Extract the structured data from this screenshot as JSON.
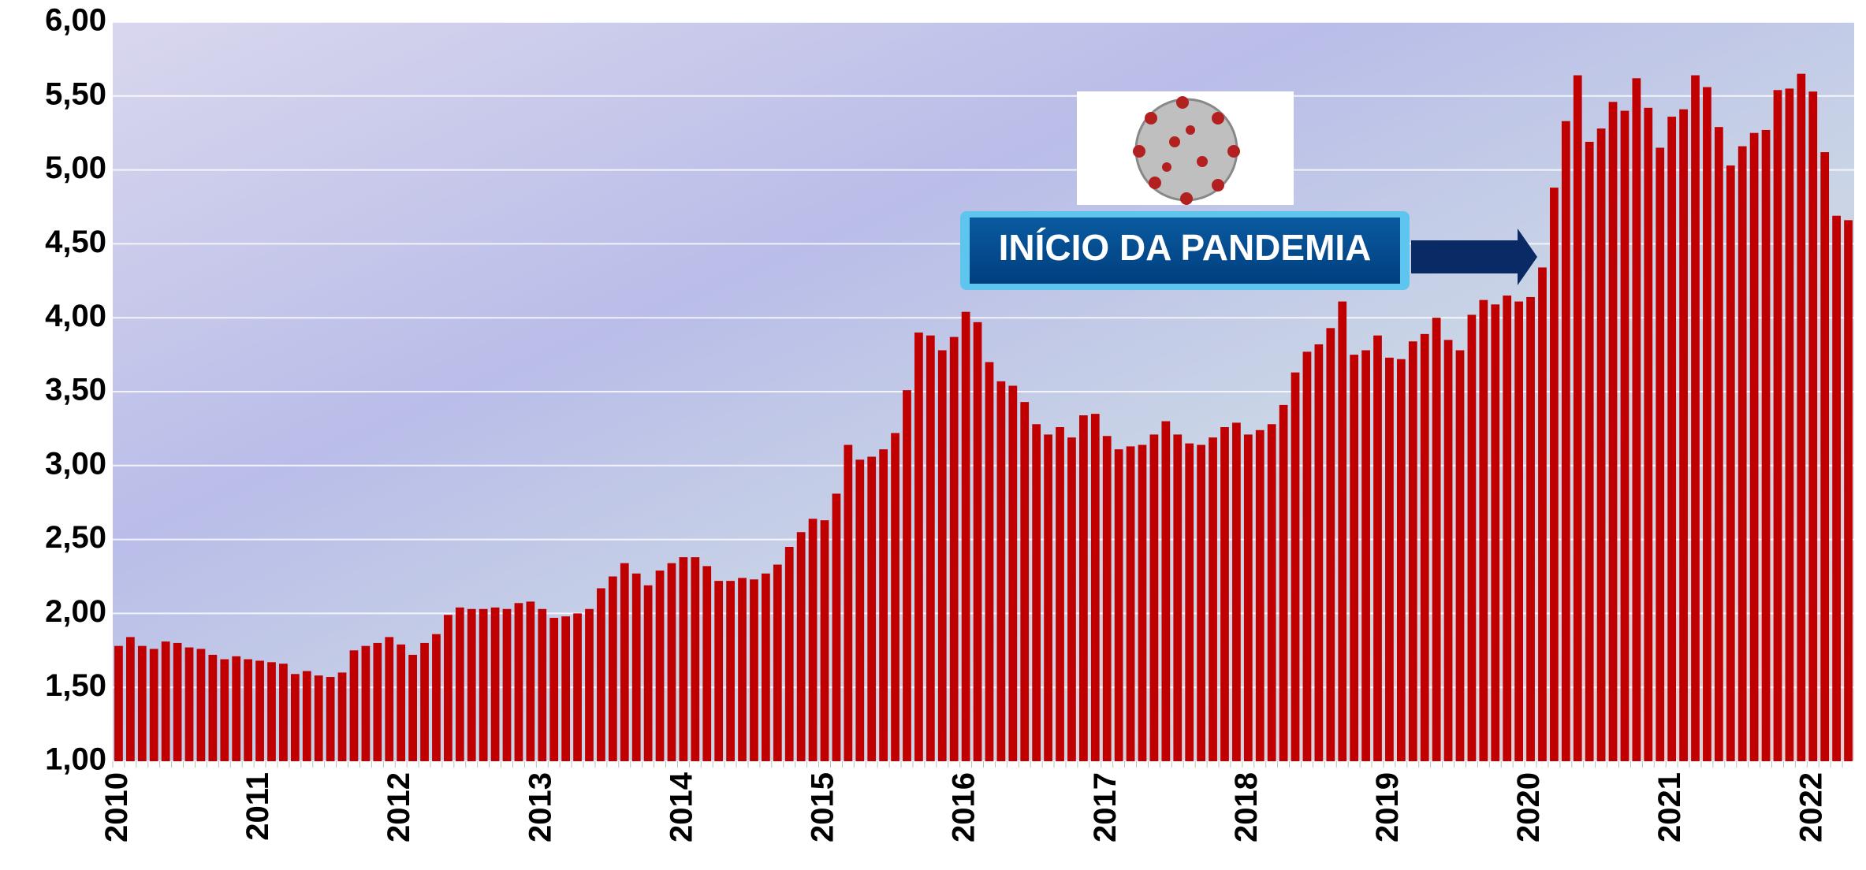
{
  "chart_data": {
    "type": "bar",
    "annotation": "INÍCIO DA PANDEMIA",
    "categories": [
      "2010",
      null,
      null,
      null,
      null,
      null,
      null,
      null,
      null,
      null,
      null,
      null,
      "2011",
      null,
      null,
      null,
      null,
      null,
      null,
      null,
      null,
      null,
      null,
      null,
      "2012",
      null,
      null,
      null,
      null,
      null,
      null,
      null,
      null,
      null,
      null,
      null,
      "2013",
      null,
      null,
      null,
      null,
      null,
      null,
      null,
      null,
      null,
      null,
      null,
      "2014",
      null,
      null,
      null,
      null,
      null,
      null,
      null,
      null,
      null,
      null,
      null,
      "2015",
      null,
      null,
      null,
      null,
      null,
      null,
      null,
      null,
      null,
      null,
      null,
      "2016",
      null,
      null,
      null,
      null,
      null,
      null,
      null,
      null,
      null,
      null,
      null,
      "2017",
      null,
      null,
      null,
      null,
      null,
      null,
      null,
      null,
      null,
      null,
      null,
      "2018",
      null,
      null,
      null,
      null,
      null,
      null,
      null,
      null,
      null,
      null,
      null,
      "2019",
      null,
      null,
      null,
      null,
      null,
      null,
      null,
      null,
      null,
      null,
      null,
      "2020",
      null,
      null,
      null,
      null,
      null,
      null,
      null,
      null,
      null,
      null,
      null,
      "2021",
      null,
      null,
      null,
      null,
      null,
      null,
      null,
      null,
      null,
      null,
      null,
      "2022",
      null,
      null,
      null
    ],
    "values": [
      1.78,
      1.84,
      1.78,
      1.76,
      1.81,
      1.8,
      1.77,
      1.76,
      1.72,
      1.69,
      1.71,
      1.69,
      1.68,
      1.67,
      1.66,
      1.59,
      1.61,
      1.58,
      1.57,
      1.6,
      1.75,
      1.78,
      1.8,
      1.84,
      1.79,
      1.72,
      1.8,
      1.86,
      1.99,
      2.04,
      2.03,
      2.03,
      2.04,
      2.03,
      2.07,
      2.08,
      2.03,
      1.97,
      1.98,
      2.0,
      2.03,
      2.17,
      2.25,
      2.34,
      2.27,
      2.19,
      2.29,
      2.34,
      2.38,
      2.38,
      2.32,
      2.22,
      2.22,
      2.24,
      2.23,
      2.27,
      2.33,
      2.45,
      2.55,
      2.64,
      2.63,
      2.81,
      3.14,
      3.04,
      3.06,
      3.11,
      3.22,
      3.51,
      3.9,
      3.88,
      3.78,
      3.87,
      4.04,
      3.97,
      3.7,
      3.57,
      3.54,
      3.43,
      3.28,
      3.21,
      3.26,
      3.19,
      3.34,
      3.35,
      3.2,
      3.11,
      3.13,
      3.14,
      3.21,
      3.3,
      3.21,
      3.15,
      3.14,
      3.19,
      3.26,
      3.29,
      3.21,
      3.24,
      3.28,
      3.41,
      3.63,
      3.77,
      3.82,
      3.93,
      4.11,
      3.75,
      3.78,
      3.88,
      3.73,
      3.72,
      3.84,
      3.89,
      4.0,
      3.85,
      3.78,
      4.02,
      4.12,
      4.09,
      4.15,
      4.11,
      4.14,
      4.34,
      4.88,
      5.33,
      5.64,
      5.19,
      5.28,
      5.46,
      5.4,
      5.62,
      5.42,
      5.15,
      5.36,
      5.41,
      5.64,
      5.56,
      5.29,
      5.03,
      5.16,
      5.25,
      5.27,
      5.54,
      5.55,
      5.65,
      5.53,
      5.12,
      4.69,
      4.66
    ],
    "color": "#c00000",
    "ylim": [
      1,
      6
    ],
    "yticks": [
      {
        "value": 1,
        "label": "1,00"
      },
      {
        "value": 1.5,
        "label": "1,50"
      },
      {
        "value": 2,
        "label": "2,00"
      },
      {
        "value": 2.5,
        "label": "2,50"
      },
      {
        "value": 3,
        "label": "3,00"
      },
      {
        "value": 3.5,
        "label": "3,50"
      },
      {
        "value": 4,
        "label": "4,00"
      },
      {
        "value": 4.5,
        "label": "4,50"
      },
      {
        "value": 5,
        "label": "5,00"
      },
      {
        "value": 5.5,
        "label": "5,50"
      },
      {
        "value": 6,
        "label": "6,00"
      }
    ],
    "grid": true
  }
}
